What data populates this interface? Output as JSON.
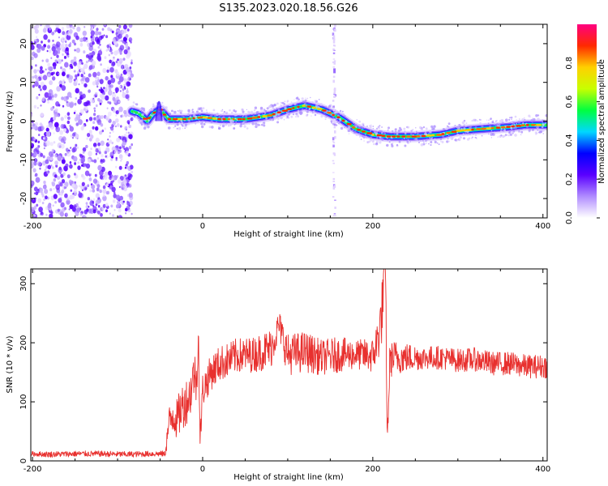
{
  "title": "S135.2023.020.18.56.G26",
  "chart_data": [
    {
      "type": "heatmap",
      "xlabel": "Height of straight line (km)",
      "ylabel": "Frequency (Hz)",
      "xlim": [
        -202,
        405
      ],
      "ylim": [
        -25,
        25
      ],
      "xticks": [
        -200,
        0,
        200,
        400
      ],
      "yticks": [
        -20,
        -10,
        0,
        10,
        20
      ],
      "colorbar": {
        "label": "Normalized spectral amplitude",
        "ticks": [
          "0.0",
          "0.2",
          "0.4",
          "0.6",
          "0.8"
        ],
        "range": [
          0,
          1
        ],
        "colors": [
          "#ffffff",
          "#b08cff",
          "#5a00ff",
          "#0000ff",
          "#00d8ff",
          "#00ff40",
          "#c8ff00",
          "#ffd000",
          "#ff2a00",
          "#ff0080"
        ]
      },
      "noise_region_x": [
        -202,
        -83
      ],
      "ridge": {
        "name": "frequency track",
        "x": [
          -83,
          -75,
          -65,
          -58,
          -50,
          -40,
          -20,
          0,
          20,
          50,
          80,
          100,
          120,
          140,
          160,
          180,
          200,
          220,
          250,
          280,
          300,
          330,
          360,
          380,
          405
        ],
        "y": [
          2.5,
          2,
          0,
          2,
          3,
          0.5,
          0.5,
          1,
          0.5,
          0.5,
          1.5,
          3,
          4,
          3,
          1,
          -2,
          -3.5,
          -4,
          -4,
          -3.5,
          -2.5,
          -2,
          -1.5,
          -1,
          -1
        ]
      },
      "spike_x": 155
    },
    {
      "type": "line",
      "xlabel": "Height of straight line (km)",
      "ylabel": "SNR (10 * v/v)",
      "xlim": [
        -202,
        405
      ],
      "ylim": [
        0,
        325
      ],
      "xticks": [
        -200,
        0,
        200,
        400
      ],
      "yticks": [
        0,
        100,
        200,
        300
      ],
      "series": [
        {
          "color": "#e8302e",
          "x": [
            -202,
            -180,
            -150,
            -120,
            -90,
            -60,
            -44,
            -40,
            -35,
            -30,
            -25,
            -20,
            -15,
            -10,
            -7,
            -5,
            -3,
            0,
            10,
            20,
            30,
            40,
            60,
            80,
            90,
            100,
            120,
            140,
            160,
            180,
            200,
            205,
            210,
            213,
            215,
            217,
            220,
            225,
            240,
            260,
            280,
            300,
            320,
            340,
            360,
            380,
            405
          ],
          "y": [
            12,
            11,
            12,
            12,
            11,
            12,
            12,
            60,
            80,
            70,
            90,
            100,
            110,
            150,
            130,
            225,
            30,
            120,
            150,
            165,
            170,
            178,
            180,
            190,
            230,
            180,
            185,
            175,
            180,
            180,
            178,
            200,
            240,
            300,
            320,
            25,
            170,
            175,
            175,
            175,
            175,
            170,
            172,
            165,
            165,
            160,
            160
          ],
          "noise": [
            4,
            5,
            5,
            5,
            5,
            5,
            5,
            30,
            35,
            35,
            40,
            40,
            40,
            40,
            40,
            30,
            20,
            30,
            30,
            30,
            30,
            30,
            30,
            35,
            25,
            35,
            35,
            30,
            30,
            25,
            30,
            40,
            50,
            60,
            30,
            20,
            30,
            30,
            25,
            20,
            20,
            20,
            20,
            20,
            20,
            20,
            20
          ]
        }
      ]
    }
  ]
}
